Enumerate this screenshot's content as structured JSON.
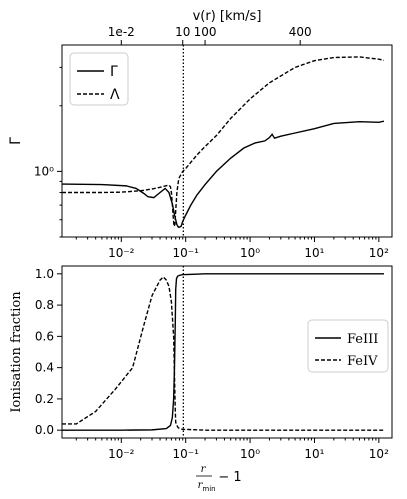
{
  "chart_data": [
    {
      "type": "line",
      "ylabel": "Γ",
      "xscale": "log",
      "yscale": "log",
      "xlim": [
        0.0012,
        160
      ],
      "ylim": [
        0.5,
        3.8
      ],
      "top_axis": {
        "label": "v(r) [km/s]",
        "ticks": [
          {
            "x": 0.01,
            "label": "1e-2"
          },
          {
            "x": 0.09,
            "label": "10"
          },
          {
            "x": 0.2,
            "label": "100"
          },
          {
            "x": 6,
            "label": "400"
          }
        ]
      },
      "x_ticks": [
        {
          "x": 0.01,
          "label": "10⁻²"
        },
        {
          "x": 0.1,
          "label": "10⁻¹"
        },
        {
          "x": 1,
          "label": "10⁰"
        },
        {
          "x": 10,
          "label": "10¹"
        },
        {
          "x": 100,
          "label": "10²"
        }
      ],
      "y_ticks": [
        {
          "y": 1,
          "label": "10⁰"
        }
      ],
      "vline_x": 0.092,
      "legend": {
        "position": "upper left",
        "entries": [
          {
            "label": "Γ",
            "style": "solid"
          },
          {
            "label": "Λ",
            "style": "dashed"
          }
        ]
      },
      "series": [
        {
          "name": "Γ",
          "style": "solid",
          "x": [
            0.0012,
            0.005,
            0.012,
            0.017,
            0.022,
            0.026,
            0.032,
            0.04,
            0.048,
            0.055,
            0.062,
            0.068,
            0.073,
            0.077,
            0.08,
            0.085,
            0.09,
            0.1,
            0.12,
            0.15,
            0.2,
            0.3,
            0.5,
            0.8,
            1.2,
            1.7,
            2.0,
            2.2,
            2.4,
            3,
            5,
            10,
            20,
            50,
            100,
            120
          ],
          "y": [
            0.875,
            0.87,
            0.858,
            0.835,
            0.795,
            0.765,
            0.758,
            0.8,
            0.835,
            0.8,
            0.71,
            0.62,
            0.57,
            0.555,
            0.555,
            0.56,
            0.59,
            0.63,
            0.7,
            0.78,
            0.87,
            1.0,
            1.15,
            1.28,
            1.35,
            1.38,
            1.43,
            1.48,
            1.42,
            1.45,
            1.5,
            1.57,
            1.66,
            1.69,
            1.68,
            1.7
          ]
        },
        {
          "name": "Λ",
          "style": "dashed",
          "x": [
            0.0012,
            0.005,
            0.01,
            0.015,
            0.02,
            0.03,
            0.04,
            0.05,
            0.055,
            0.058,
            0.06,
            0.062,
            0.064,
            0.066,
            0.068,
            0.07,
            0.073,
            0.077,
            0.08,
            0.085,
            0.09,
            0.1,
            0.12,
            0.15,
            0.2,
            0.3,
            0.5,
            1,
            2,
            5,
            10,
            20,
            50,
            100,
            120
          ],
          "y": [
            0.8,
            0.8,
            0.803,
            0.81,
            0.815,
            0.83,
            0.845,
            0.86,
            0.865,
            0.85,
            0.8,
            0.71,
            0.62,
            0.56,
            0.57,
            0.66,
            0.8,
            0.9,
            0.94,
            0.97,
            1.0,
            1.03,
            1.1,
            1.19,
            1.3,
            1.46,
            1.75,
            2.15,
            2.55,
            3.0,
            3.22,
            3.33,
            3.35,
            3.27,
            3.23
          ]
        }
      ]
    },
    {
      "type": "line",
      "ylabel": "Ionisation fraction",
      "xlabel": "r/r_min − 1",
      "xscale": "log",
      "xlim": [
        0.0012,
        160
      ],
      "ylim": [
        -0.05,
        1.05
      ],
      "x_ticks": [
        {
          "x": 0.01,
          "label": "10⁻²"
        },
        {
          "x": 0.1,
          "label": "10⁻¹"
        },
        {
          "x": 1,
          "label": "10⁰"
        },
        {
          "x": 10,
          "label": "10¹"
        },
        {
          "x": 100,
          "label": "10²"
        }
      ],
      "y_ticks": [
        {
          "y": 0.0,
          "label": "0.0"
        },
        {
          "y": 0.2,
          "label": "0.2"
        },
        {
          "y": 0.4,
          "label": "0.4"
        },
        {
          "y": 0.6,
          "label": "0.6"
        },
        {
          "y": 0.8,
          "label": "0.8"
        },
        {
          "y": 1.0,
          "label": "1.0"
        }
      ],
      "vline_x": 0.092,
      "legend": {
        "position": "center right",
        "entries": [
          {
            "label": "FeIII",
            "style": "solid"
          },
          {
            "label": "FeIV",
            "style": "dashed"
          }
        ]
      },
      "series": [
        {
          "name": "FeIII",
          "style": "solid",
          "x": [
            0.0012,
            0.01,
            0.03,
            0.05,
            0.058,
            0.062,
            0.065,
            0.067,
            0.069,
            0.07,
            0.072,
            0.075,
            0.08,
            0.09,
            0.1,
            0.2,
            1,
            10,
            120
          ],
          "y": [
            0.0,
            0.0,
            0.002,
            0.01,
            0.03,
            0.08,
            0.2,
            0.4,
            0.7,
            0.9,
            0.97,
            0.985,
            0.99,
            0.995,
            0.995,
            1.0,
            1.0,
            1.0,
            1.0
          ]
        },
        {
          "name": "FeIV",
          "style": "dashed",
          "x": [
            0.0012,
            0.002,
            0.004,
            0.008,
            0.015,
            0.022,
            0.03,
            0.04,
            0.045,
            0.05,
            0.055,
            0.06,
            0.065,
            0.067,
            0.069,
            0.07,
            0.075,
            0.08,
            0.09,
            0.1,
            0.2,
            1,
            10,
            120
          ],
          "y": [
            0.04,
            0.04,
            0.12,
            0.26,
            0.4,
            0.66,
            0.86,
            0.96,
            0.98,
            0.96,
            0.92,
            0.82,
            0.6,
            0.35,
            0.12,
            0.05,
            0.02,
            0.01,
            0.005,
            0.005,
            0.0,
            0.0,
            0.0,
            0.0
          ]
        }
      ]
    }
  ]
}
